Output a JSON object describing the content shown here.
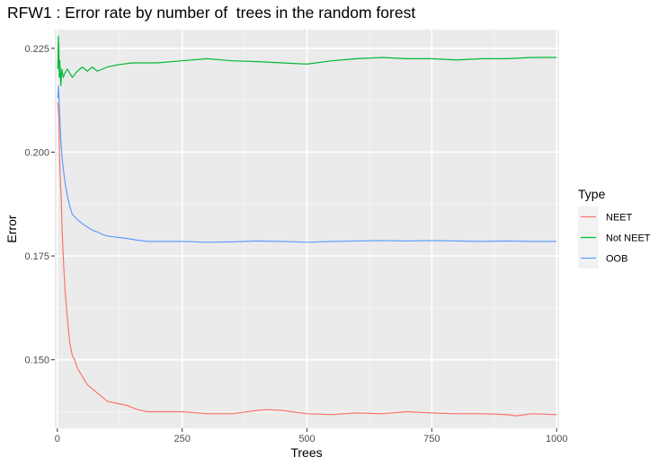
{
  "chart_data": {
    "type": "line",
    "title": "RFW1 : Error rate by number of  trees in the random forest",
    "xlabel": "Trees",
    "ylabel": "Error",
    "xlim": [
      -5,
      1005
    ],
    "ylim": [
      0.1335,
      0.2295
    ],
    "x_ticks": [
      0,
      250,
      500,
      750,
      1000
    ],
    "x_tick_labels": [
      "0",
      "250",
      "500",
      "750",
      "1000"
    ],
    "y_ticks": [
      0.15,
      0.175,
      0.2,
      0.225
    ],
    "y_tick_labels": [
      "0.150",
      "0.175",
      "0.200",
      "0.225"
    ],
    "grid": true,
    "legend": {
      "title": "Type",
      "placement": "right"
    },
    "series": [
      {
        "name": "NEET",
        "color": "#F8766D",
        "x": [
          1,
          3,
          5,
          8,
          10,
          13,
          16,
          20,
          25,
          30,
          35,
          40,
          50,
          60,
          70,
          80,
          90,
          100,
          120,
          140,
          160,
          180,
          200,
          250,
          300,
          350,
          400,
          420,
          450,
          500,
          550,
          600,
          650,
          700,
          750,
          800,
          850,
          900,
          920,
          950,
          1000
        ],
        "y": [
          0.212,
          0.208,
          0.196,
          0.188,
          0.18,
          0.172,
          0.166,
          0.16,
          0.154,
          0.151,
          0.15,
          0.148,
          0.146,
          0.144,
          0.143,
          0.142,
          0.141,
          0.14,
          0.1395,
          0.139,
          0.138,
          0.1375,
          0.1375,
          0.1375,
          0.137,
          0.137,
          0.1378,
          0.138,
          0.1378,
          0.137,
          0.1368,
          0.1372,
          0.137,
          0.1375,
          0.1372,
          0.137,
          0.137,
          0.1368,
          0.1365,
          0.137,
          0.1368
        ]
      },
      {
        "name": "Not NEET",
        "color": "#00BA38",
        "x": [
          1,
          2,
          3,
          4,
          5,
          7,
          9,
          12,
          15,
          20,
          25,
          30,
          40,
          50,
          60,
          70,
          80,
          100,
          120,
          150,
          200,
          250,
          300,
          350,
          400,
          450,
          500,
          550,
          600,
          650,
          700,
          750,
          800,
          850,
          900,
          950,
          1000
        ],
        "y": [
          0.22,
          0.228,
          0.225,
          0.218,
          0.222,
          0.216,
          0.22,
          0.218,
          0.219,
          0.22,
          0.219,
          0.218,
          0.2195,
          0.2205,
          0.2195,
          0.2205,
          0.2195,
          0.2205,
          0.221,
          0.2215,
          0.2215,
          0.222,
          0.2225,
          0.222,
          0.2218,
          0.2215,
          0.2212,
          0.222,
          0.2225,
          0.2228,
          0.2225,
          0.2225,
          0.2222,
          0.2225,
          0.2225,
          0.2228,
          0.2228
        ]
      },
      {
        "name": "OOB",
        "color": "#619CFF",
        "x": [
          1,
          2,
          3,
          4,
          5,
          7,
          10,
          15,
          20,
          25,
          30,
          40,
          50,
          60,
          70,
          80,
          90,
          100,
          120,
          140,
          160,
          180,
          200,
          250,
          300,
          350,
          400,
          450,
          500,
          550,
          600,
          650,
          700,
          750,
          800,
          850,
          900,
          950,
          1000
        ],
        "y": [
          0.213,
          0.216,
          0.214,
          0.211,
          0.208,
          0.203,
          0.198,
          0.193,
          0.1895,
          0.187,
          0.185,
          0.1838,
          0.1828,
          0.182,
          0.1812,
          0.1808,
          0.1802,
          0.1798,
          0.1795,
          0.1792,
          0.1788,
          0.1785,
          0.1785,
          0.1785,
          0.1783,
          0.1784,
          0.1786,
          0.1785,
          0.1783,
          0.1785,
          0.1786,
          0.1787,
          0.1786,
          0.1787,
          0.1786,
          0.1785,
          0.1786,
          0.1785,
          0.1785
        ]
      }
    ]
  }
}
